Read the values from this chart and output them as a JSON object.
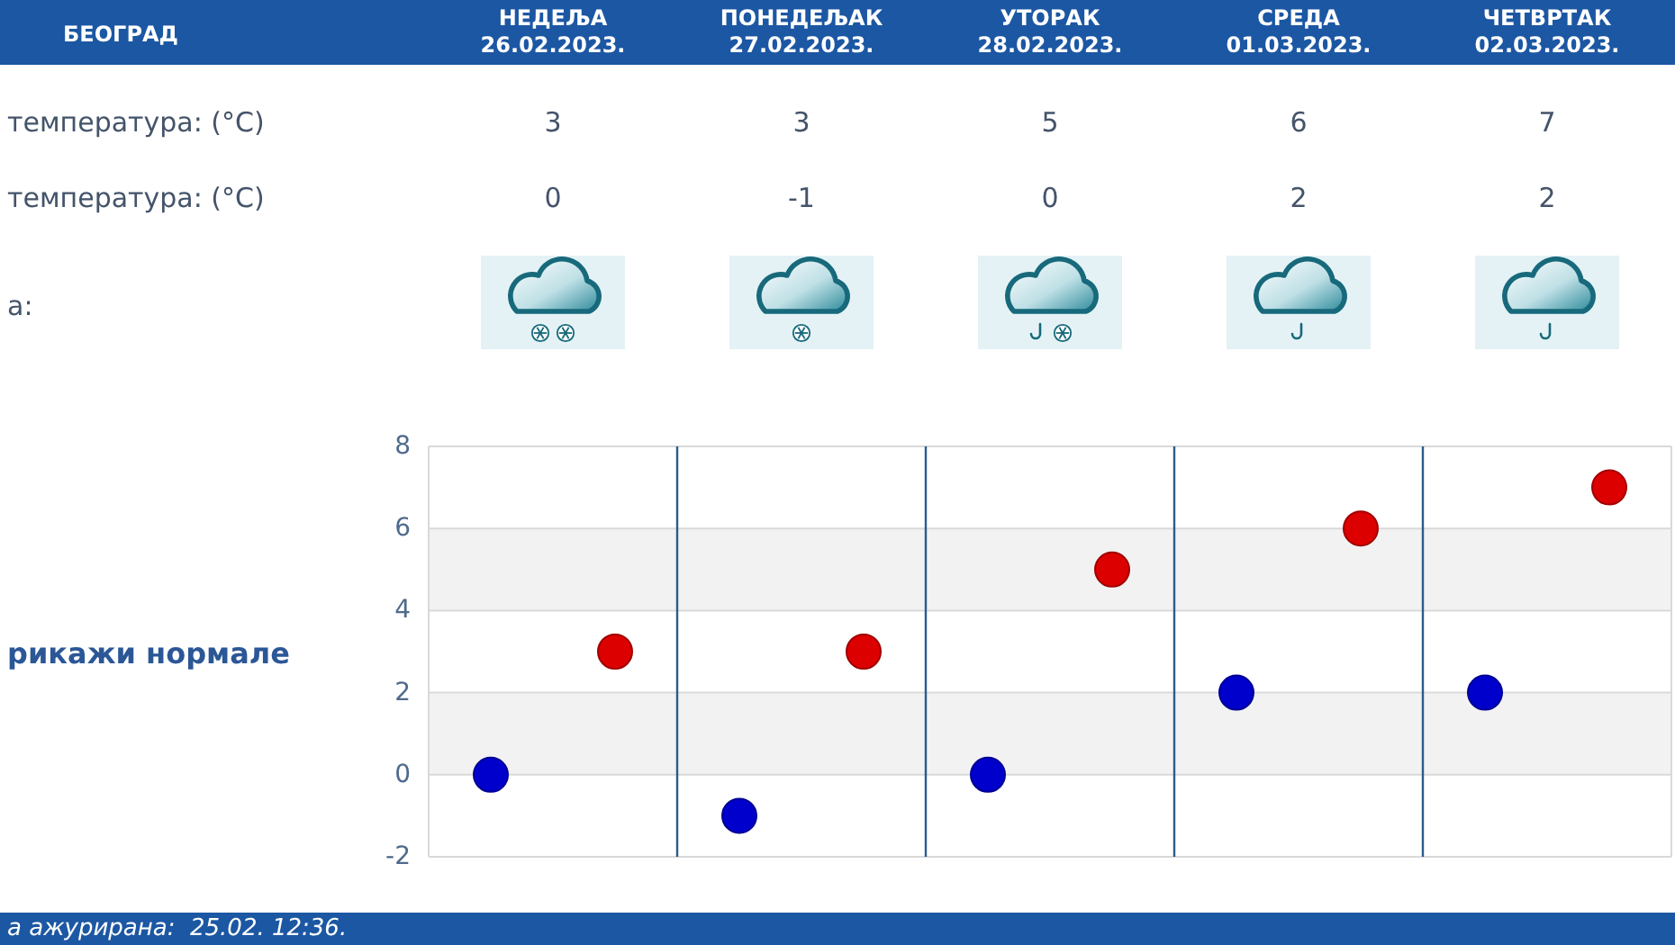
{
  "chart_data": {
    "type": "scatter",
    "title": "БЕОГРАД",
    "categories": [
      null,
      null,
      null,
      null,
      null
    ],
    "series": [
      {
        "color": "#dd0000",
        "values": [
          3,
          3,
          5,
          6,
          7
        ]
      },
      {
        "color": "#0000cc",
        "values": [
          0,
          -1,
          0,
          2,
          2
        ]
      }
    ],
    "ylim": [
      -2,
      8
    ],
    "yticks": [
      -2,
      0,
      2,
      4,
      6,
      8
    ],
    "grid": true,
    "marker": "circle",
    "data_labels": true,
    "annotations": [
      "НЕДЕЉА\n26.02.2023.",
      "ПОНЕДЕЉАК\n27.02.2023.",
      "УТОРАК\n28.02.2023.",
      "СРЕДА\n01.03.2023.",
      "ЧЕТВРТАК\n02.03.2023.",
      "температура: (°C)",
      "температура: (°C)",
      "а:",
      "рикажи нормале",
      "а ажурирана:  25.02. 12:36."
    ]
  }
}
